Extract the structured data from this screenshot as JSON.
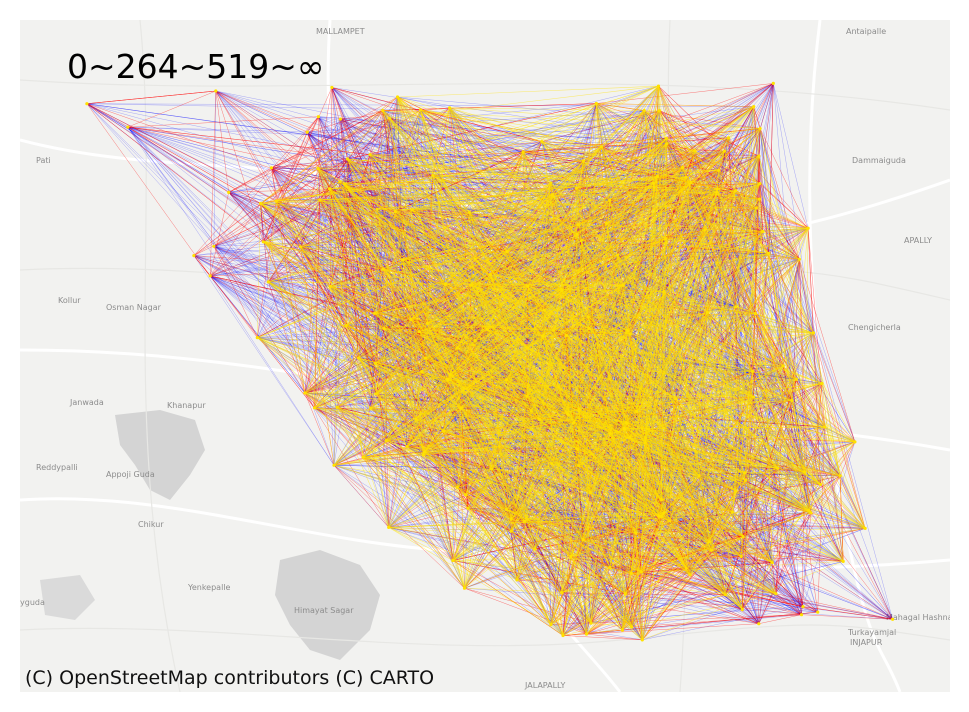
{
  "legend": {
    "title": "0~264~519~∞",
    "breaks": [
      0,
      264,
      519,
      "∞"
    ],
    "colors": [
      "#0000ff",
      "#ff0000",
      "#ffe100"
    ]
  },
  "attribution": "(C) OpenStreetMap contributors (C) CARTO",
  "basemap": {
    "style": "CARTO light",
    "place_labels": [
      {
        "name": "MALLAMPET"
      },
      {
        "name": "Antaipalle"
      },
      {
        "name": "Pati"
      },
      {
        "name": "Dammaiguda"
      },
      {
        "name": "APALLY"
      },
      {
        "name": "Kollur"
      },
      {
        "name": "Osman Nagar"
      },
      {
        "name": "Chengicherla"
      },
      {
        "name": "Janwada"
      },
      {
        "name": "Khanapur"
      },
      {
        "name": "Reddypalli"
      },
      {
        "name": "Appoji Guda"
      },
      {
        "name": "Chikur"
      },
      {
        "name": "Yenkepalle"
      },
      {
        "name": "yguda"
      },
      {
        "name": "Himayat Sagar"
      },
      {
        "name": "JALAPALLY"
      },
      {
        "name": "INJAPUR"
      },
      {
        "name": "Turkayamjal"
      },
      {
        "name": "Mahagal Hashnagar"
      }
    ]
  },
  "flow_map": {
    "nodes": [
      [
        1,
        3
      ],
      [
        1.8,
        5.1
      ],
      [
        2.1,
        12
      ],
      [
        2.6,
        9
      ],
      [
        3,
        6
      ],
      [
        5.4,
        5.2
      ],
      [
        5.9,
        7.4
      ],
      [
        7.8,
        4.4
      ],
      [
        8.6,
        8.7
      ],
      [
        10.8,
        9.2
      ],
      [
        11.2,
        10.4
      ],
      [
        9.8,
        8.8
      ],
      [
        12.8,
        10.4
      ],
      [
        13.5,
        5.8
      ],
      [
        13.2,
        6.6
      ],
      [
        16.4,
        1.8
      ],
      [
        17.1,
        4.6
      ],
      [
        18.2,
        1.2
      ],
      [
        19.4,
        3.9
      ],
      [
        21.2,
        2.2
      ],
      [
        24,
        6.8
      ],
      [
        23.9,
        8.2
      ],
      [
        24.5,
        2.9
      ],
      [
        27,
        6.6
      ],
      [
        27.4,
        10.6
      ],
      [
        30.8,
        7.5
      ],
      [
        32.3,
        12.3
      ],
      [
        36,
        9.1
      ],
      [
        39.8,
        8.3
      ],
      [
        42.8,
        4.6
      ],
      [
        44.2,
        6.1
      ],
      [
        45.6,
        9.2
      ],
      [
        49.7,
        9.7
      ],
      [
        51.8,
        7.3
      ],
      [
        54.2,
        0.5
      ],
      [
        56.6,
        0.6
      ],
      [
        57,
        3.5
      ],
      [
        60.9,
        3
      ],
      [
        62.3,
        9.5
      ],
      [
        65.2,
        6.3
      ],
      [
        68.8,
        13.4
      ],
      [
        71.4,
        6.4
      ],
      [
        73.6,
        1.1
      ],
      [
        76.1,
        5.6
      ],
      [
        78.6,
        10.7
      ],
      [
        80.4,
        7
      ],
      [
        82.5,
        7.7
      ],
      [
        83.7,
        11.7
      ],
      [
        89.4,
        15.9
      ],
      [
        93.2,
        14
      ],
      [
        95.4,
        13.3
      ]
    ]
  }
}
